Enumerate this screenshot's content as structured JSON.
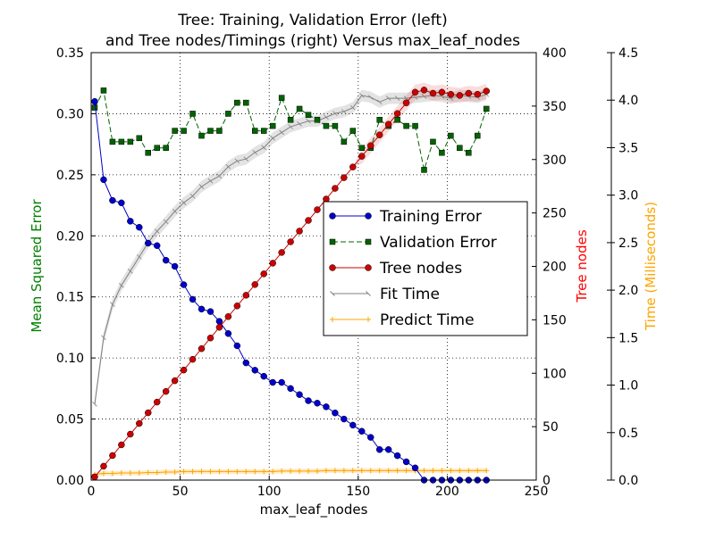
{
  "chart_data": {
    "type": "line",
    "title_line1": "Tree: Training, Validation Error (left)",
    "title_line2": "and Tree nodes/Timings (right) Versus max_leaf_nodes",
    "xlabel": "max_leaf_nodes",
    "ylabel_left": "Mean Squared Error",
    "ylabel_tree": "Tree nodes",
    "ylabel_time": "Time (Milliseconds)",
    "xlim": [
      0,
      250
    ],
    "ylim_left": [
      0,
      0.35
    ],
    "ylim_tree": [
      0,
      400
    ],
    "ylim_time": [
      0,
      4.5
    ],
    "grid": true,
    "legend_position": "center-right",
    "x_ticks": [
      "0",
      "50",
      "100",
      "150",
      "200",
      "250"
    ],
    "y_left_ticks": [
      "0.00",
      "0.05",
      "0.10",
      "0.15",
      "0.20",
      "0.25",
      "0.30",
      "0.35"
    ],
    "y_tree_ticks": [
      "0",
      "50",
      "100",
      "150",
      "200",
      "250",
      "300",
      "350",
      "400"
    ],
    "y_time_ticks": [
      "0.0",
      "0.5",
      "1.0",
      "1.5",
      "2.0",
      "2.5",
      "3.0",
      "3.5",
      "4.0",
      "4.5"
    ],
    "colors": {
      "training": "#0000cc",
      "validation": "#006400",
      "tree_nodes": "#cc0000",
      "fit_time": "#808080",
      "predict_time": "#ffa500",
      "label_left": "#008000",
      "label_tree": "#ff0000",
      "label_time": "#ffa500"
    },
    "x": [
      2,
      7,
      12,
      17,
      22,
      27,
      32,
      37,
      42,
      47,
      52,
      57,
      62,
      67,
      72,
      77,
      82,
      87,
      92,
      97,
      102,
      107,
      112,
      117,
      122,
      127,
      132,
      137,
      142,
      147,
      152,
      157,
      162,
      167,
      172,
      177,
      182,
      187,
      192,
      197,
      202,
      207,
      212,
      217,
      222
    ],
    "series": [
      {
        "name": "Training Error",
        "axis": "left",
        "values": [
          0.31,
          0.246,
          0.229,
          0.227,
          0.212,
          0.207,
          0.194,
          0.192,
          0.18,
          0.175,
          0.16,
          0.148,
          0.14,
          0.138,
          0.13,
          0.12,
          0.11,
          0.096,
          0.09,
          0.085,
          0.08,
          0.08,
          0.075,
          0.07,
          0.065,
          0.063,
          0.06,
          0.055,
          0.05,
          0.045,
          0.04,
          0.035,
          0.025,
          0.025,
          0.02,
          0.015,
          0.01,
          0.0,
          0.0,
          0.0,
          0.0,
          0.0,
          0.0,
          0.0,
          0.0
        ]
      },
      {
        "name": "Validation Error",
        "axis": "left",
        "values": [
          0.305,
          0.319,
          0.277,
          0.277,
          0.277,
          0.28,
          0.268,
          0.272,
          0.272,
          0.286,
          0.286,
          0.3,
          0.282,
          0.286,
          0.286,
          0.3,
          0.309,
          0.309,
          0.286,
          0.286,
          0.29,
          0.313,
          0.295,
          0.304,
          0.299,
          0.295,
          0.29,
          0.29,
          0.277,
          0.286,
          0.272,
          0.272,
          0.295,
          0.29,
          0.295,
          0.29,
          0.29,
          0.254,
          0.277,
          0.268,
          0.282,
          0.272,
          0.268,
          0.282,
          0.304
        ]
      },
      {
        "name": "Tree nodes",
        "axis": "tree",
        "values": [
          3,
          13,
          23,
          33,
          43,
          53,
          63,
          73,
          83,
          93,
          103,
          113,
          123,
          133,
          143,
          153,
          163,
          173,
          183,
          193,
          203,
          213,
          223,
          233,
          243,
          253,
          263,
          273,
          283,
          293,
          303,
          313,
          323,
          333,
          343,
          353,
          363,
          365,
          362,
          363,
          361,
          360,
          362,
          361,
          364
        ]
      },
      {
        "name": "Fit Time",
        "axis": "time",
        "values": [
          0.8,
          1.5,
          1.85,
          2.05,
          2.2,
          2.35,
          2.5,
          2.62,
          2.72,
          2.83,
          2.92,
          2.99,
          3.09,
          3.15,
          3.2,
          3.3,
          3.36,
          3.38,
          3.45,
          3.5,
          3.6,
          3.66,
          3.72,
          3.75,
          3.78,
          3.78,
          3.82,
          3.86,
          3.88,
          3.92,
          4.05,
          4.03,
          3.98,
          4.02,
          4.02,
          4.02,
          4.03,
          4.04,
          4.05,
          4.04,
          4.02,
          4.05,
          4.04,
          4.03,
          4.06
        ]
      },
      {
        "name": "Predict Time",
        "axis": "time",
        "values": [
          0.06,
          0.07,
          0.07,
          0.075,
          0.075,
          0.075,
          0.08,
          0.08,
          0.085,
          0.085,
          0.09,
          0.09,
          0.09,
          0.09,
          0.09,
          0.09,
          0.09,
          0.09,
          0.09,
          0.09,
          0.09,
          0.095,
          0.095,
          0.095,
          0.095,
          0.095,
          0.1,
          0.1,
          0.1,
          0.1,
          0.1,
          0.1,
          0.1,
          0.1,
          0.1,
          0.1,
          0.1,
          0.1,
          0.1,
          0.1,
          0.1,
          0.1,
          0.1,
          0.1,
          0.1
        ]
      }
    ]
  }
}
